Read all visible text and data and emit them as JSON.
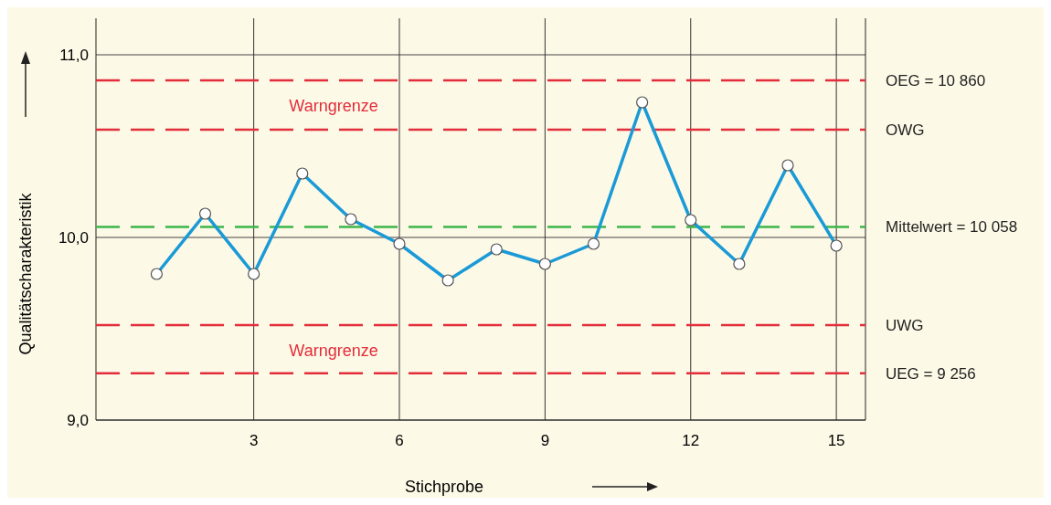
{
  "chart_data": {
    "type": "line",
    "xlabel": "Stichprobe",
    "ylabel": "Qualitätscharakteristik",
    "x": [
      1,
      2,
      3,
      4,
      5,
      6,
      7,
      8,
      9,
      10,
      11,
      12,
      13,
      14,
      15
    ],
    "series": [
      {
        "color": "#1a9ad6",
        "values": [
          9.8,
          10.13,
          9.8,
          10.35,
          10.1,
          9.965,
          9.765,
          9.935,
          9.855,
          9.965,
          10.74,
          10.095,
          9.855,
          10.395,
          9.955
        ]
      }
    ],
    "xlim": [
      -0.25,
      15.6
    ],
    "ylim": [
      9,
      11.2
    ],
    "xticks": [
      3,
      6,
      9,
      12,
      15
    ],
    "yticks": [
      {
        "value": 9,
        "label": "9,0"
      },
      {
        "value": 10,
        "label": "10,0"
      },
      {
        "value": 11,
        "label": "11,0"
      }
    ],
    "grid": true,
    "marker": "circle",
    "line_style": "solid",
    "ref_lines": [
      {
        "axis": "y",
        "value": 10.86,
        "label": "OEG = 10 860",
        "color": "#e32d3a",
        "line_style": "dashed"
      },
      {
        "axis": "y",
        "value": 10.59,
        "label": "OWG",
        "color": "#e32d3a",
        "line_style": "dashed"
      },
      {
        "axis": "y",
        "value": 10.058,
        "label": "Mittelwert = 10 058",
        "color": "#3cb54a",
        "line_style": "dashed"
      },
      {
        "axis": "y",
        "value": 9.52,
        "label": "UWG",
        "color": "#e32d3a",
        "line_style": "dashed"
      },
      {
        "axis": "y",
        "value": 9.256,
        "label": "UEG = 9 256",
        "color": "#e32d3a",
        "line_style": "dashed"
      }
    ],
    "annotations": [
      "Warngrenze",
      "Warngrenze"
    ]
  }
}
